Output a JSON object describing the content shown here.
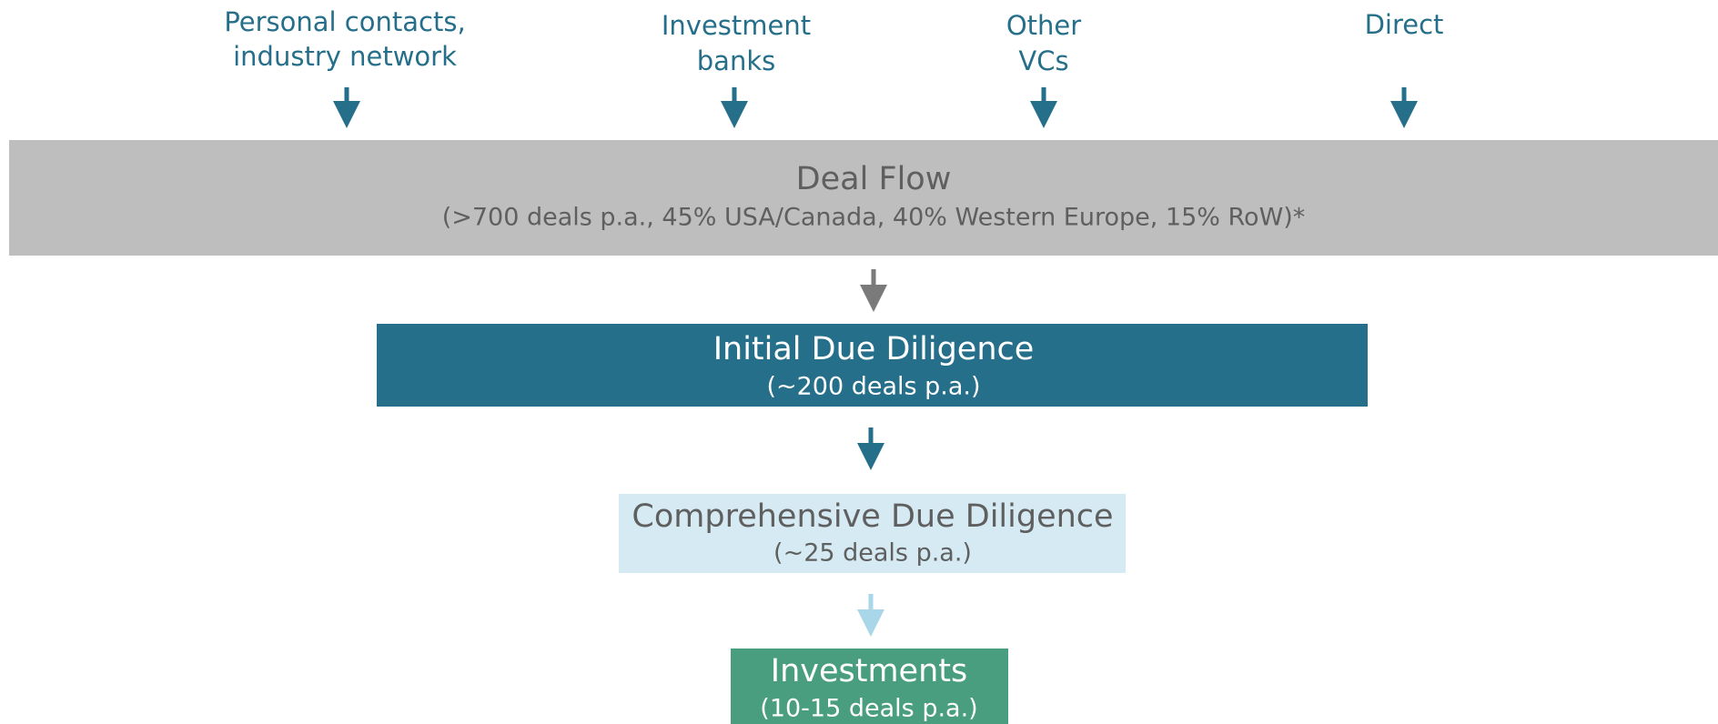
{
  "sources": [
    {
      "lines": [
        "Personal contacts,",
        "industry network"
      ]
    },
    {
      "lines": [
        "Investment",
        "banks"
      ]
    },
    {
      "lines": [
        "Other",
        "VCs"
      ]
    },
    {
      "lines": [
        "Direct"
      ]
    }
  ],
  "stages": [
    {
      "title": "Deal Flow",
      "subtitle": "(>700 deals p.a., 45% USA/Canada, 40% Western Europe, 15% RoW)*"
    },
    {
      "title": "Initial Due Diligence",
      "subtitle": "(~200 deals p.a.)"
    },
    {
      "title": "Comprehensive Due Diligence",
      "subtitle": "(~25 deals p.a.)"
    },
    {
      "title": "Investments",
      "subtitle": "(10-15 deals p.a.)"
    }
  ]
}
